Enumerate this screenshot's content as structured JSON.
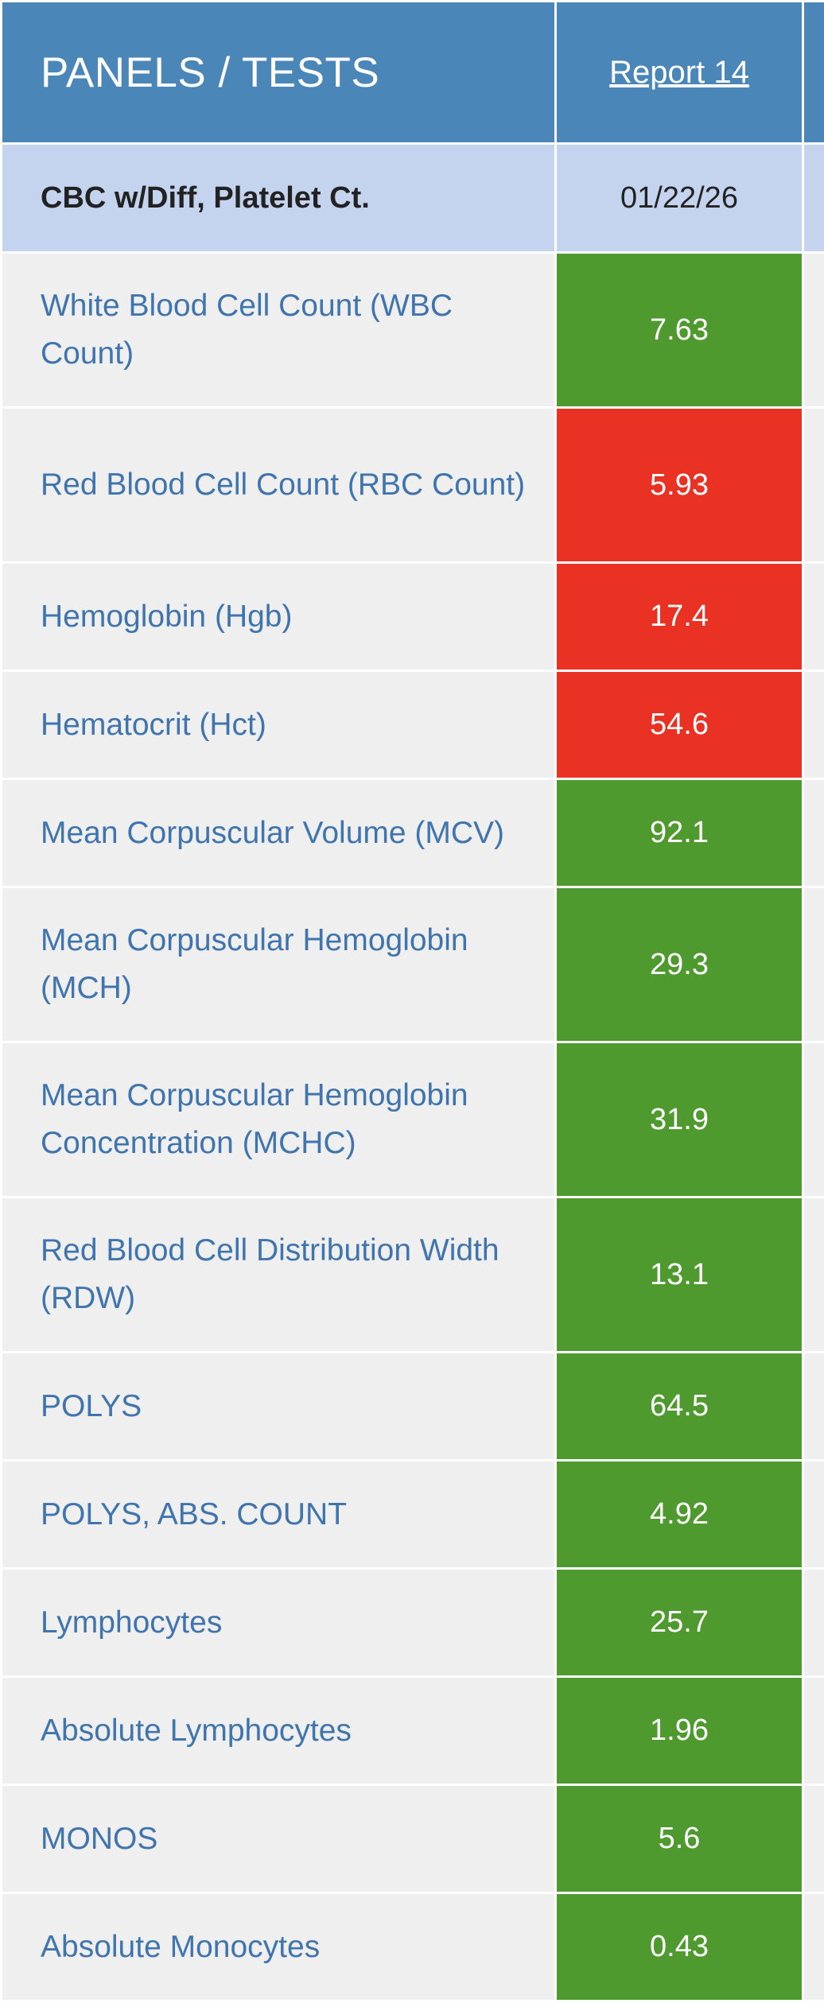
{
  "header": {
    "title": "PANELS / TESTS",
    "report_link": "Report 14"
  },
  "panel": {
    "name": "CBC w/Diff, Platelet Ct.",
    "date": "01/22/26"
  },
  "status_colors": {
    "normal": "#4f9a2f",
    "abnormal": "#ea3224"
  },
  "tests": [
    {
      "name": "White Blood Cell Count (WBC Count)",
      "value": "7.63",
      "status": "normal"
    },
    {
      "name": "Red Blood Cell Count (RBC Count)",
      "value": "5.93",
      "status": "abnormal"
    },
    {
      "name": "Hemoglobin (Hgb)",
      "value": "17.4",
      "status": "abnormal"
    },
    {
      "name": "Hematocrit (Hct)",
      "value": "54.6",
      "status": "abnormal"
    },
    {
      "name": "Mean Corpuscular Volume (MCV)",
      "value": "92.1",
      "status": "normal"
    },
    {
      "name": "Mean Corpuscular Hemoglobin (MCH)",
      "value": "29.3",
      "status": "normal"
    },
    {
      "name": "Mean Corpuscular Hemoglobin Concentration (MCHC)",
      "value": "31.9",
      "status": "normal"
    },
    {
      "name": "Red Blood Cell Distribution Width (RDW)",
      "value": "13.1",
      "status": "normal"
    },
    {
      "name": "POLYS",
      "value": "64.5",
      "status": "normal"
    },
    {
      "name": "POLYS, ABS. COUNT",
      "value": "4.92",
      "status": "normal"
    },
    {
      "name": "Lymphocytes",
      "value": "25.7",
      "status": "normal"
    },
    {
      "name": "Absolute Lymphocytes",
      "value": "1.96",
      "status": "normal"
    },
    {
      "name": "MONOS",
      "value": "5.6",
      "status": "normal"
    },
    {
      "name": "Absolute Monocytes",
      "value": "0.43",
      "status": "normal"
    }
  ]
}
